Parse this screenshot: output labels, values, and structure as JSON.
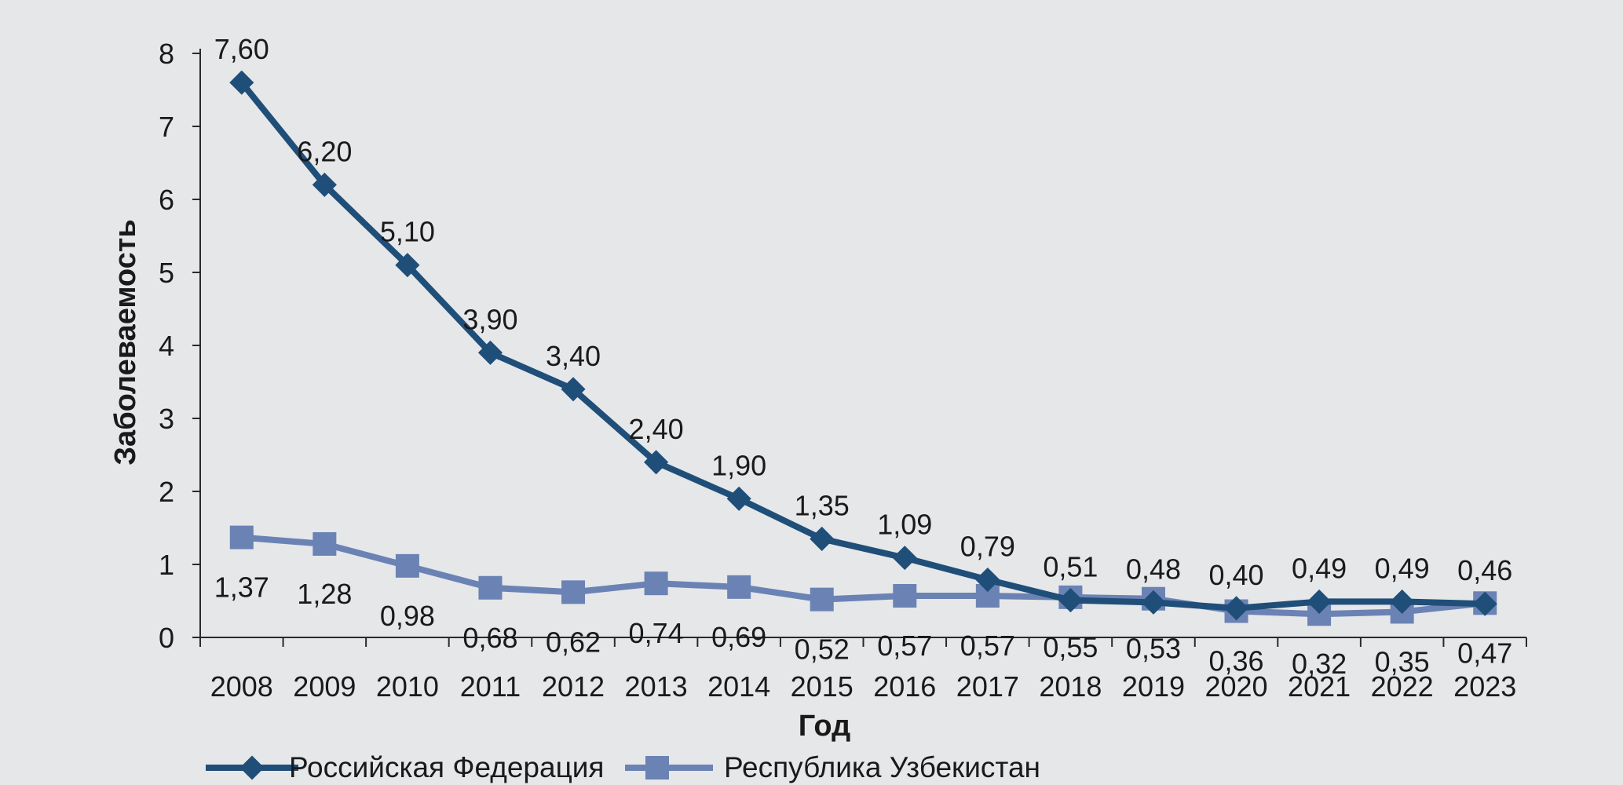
{
  "chart_data": {
    "type": "line",
    "title": "",
    "xlabel": "Год",
    "ylabel": "Заболеваемость",
    "ylim": [
      0,
      8
    ],
    "yticks": [
      "0",
      "1",
      "2",
      "3",
      "4",
      "5",
      "6",
      "7",
      "8"
    ],
    "categories": [
      "2008",
      "2009",
      "2010",
      "2011",
      "2012",
      "2013",
      "2014",
      "2015",
      "2016",
      "2017",
      "2018",
      "2019",
      "2020",
      "2021",
      "2022",
      "2023"
    ],
    "legend_position": "bottom-left",
    "grid": false,
    "series": [
      {
        "name": "Российская Федерация",
        "marker": "diamond",
        "color": "#1f4e79",
        "values": [
          7.6,
          6.2,
          5.1,
          3.9,
          3.4,
          2.4,
          1.9,
          1.35,
          1.09,
          0.79,
          0.51,
          0.48,
          0.4,
          0.49,
          0.49,
          0.46
        ],
        "labels": [
          "7,60",
          "6,20",
          "5,10",
          "3,90",
          "3,40",
          "2,40",
          "1,90",
          "1,35",
          "1,09",
          "0,79",
          "0,51",
          "0,48",
          "0,40",
          "0,49",
          "0,49",
          "0,46"
        ]
      },
      {
        "name": "Республика Узбекистан",
        "marker": "square",
        "color": "#6b82b4",
        "values": [
          1.37,
          1.28,
          0.98,
          0.68,
          0.62,
          0.74,
          0.69,
          0.52,
          0.57,
          0.57,
          0.55,
          0.53,
          0.36,
          0.32,
          0.35,
          0.47
        ],
        "labels": [
          "1,37",
          "1,28",
          "0,98",
          "0,68",
          "0,62",
          "0,74",
          "0,69",
          "0,52",
          "0,57",
          "0,57",
          "0,55",
          "0,53",
          "0,36",
          "0,32",
          "0,35",
          "0,47"
        ]
      }
    ]
  }
}
